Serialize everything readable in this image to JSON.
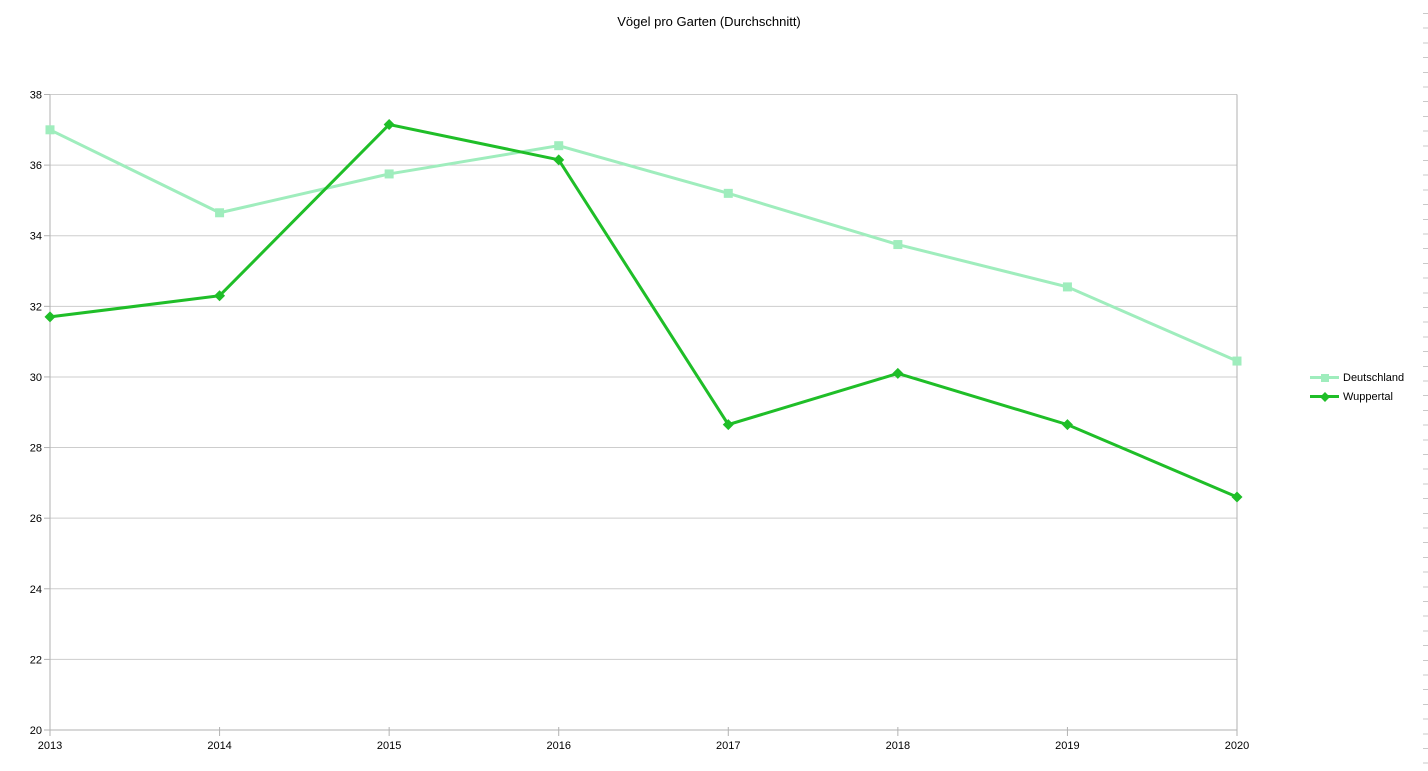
{
  "chart_data": {
    "type": "line",
    "title": "Vögel pro Garten (Durchschnitt)",
    "categories": [
      "2013",
      "2014",
      "2015",
      "2016",
      "2017",
      "2018",
      "2019",
      "2020"
    ],
    "series": [
      {
        "name": "Deutschland",
        "color": "#9FEDBD",
        "marker": "square",
        "values": [
          37.0,
          34.65,
          35.75,
          36.55,
          35.2,
          33.75,
          32.55,
          30.45
        ]
      },
      {
        "name": "Wuppertal",
        "color": "#1FBE28",
        "marker": "diamond",
        "values": [
          31.7,
          32.3,
          37.15,
          36.15,
          28.65,
          30.1,
          28.65,
          26.6
        ]
      }
    ],
    "xlabel": "",
    "ylabel": "",
    "ylim": [
      20,
      38
    ],
    "yticks": [
      20,
      22,
      24,
      26,
      28,
      30,
      32,
      34,
      36,
      38
    ],
    "grid": "horizontal",
    "legend_position": "right",
    "colors": {
      "grid_line": "#CDCDCD",
      "axis_line": "#B2B2B2",
      "text": "#000000",
      "background": "#FFFFFF"
    }
  }
}
